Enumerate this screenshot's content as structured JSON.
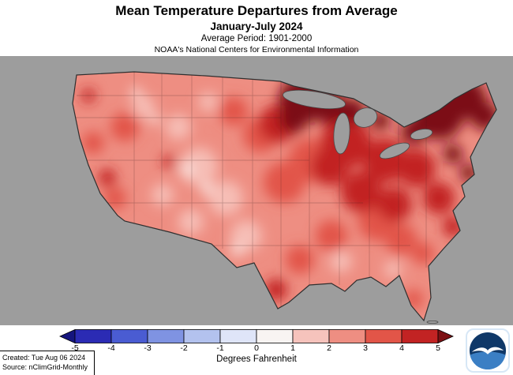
{
  "header": {
    "title": "Mean Temperature Departures from Average",
    "subtitle": "January-July 2024",
    "average_period": "Average Period: 1901-2000",
    "organization": "NOAA's National Centers for Environmental Information"
  },
  "map": {
    "description": "Contiguous United States shaded by mean temperature departure; darkest shading over the Upper Midwest, Great Lakes and Northeast"
  },
  "palette": {
    "mapBg": "#9d9d9d",
    "c01": "#faeae6",
    "c12": "#f6beb6",
    "c23": "#ee8e82",
    "c34": "#e25548",
    "c45": "#c22323",
    "c5p": "#7c1013",
    "outline": "#2f2f2f"
  },
  "colorbar": {
    "tick_labels": [
      "-5",
      "-4",
      "-3",
      "-2",
      "-1",
      "0",
      "1",
      "2",
      "3",
      "4",
      "5"
    ],
    "segment_colors": [
      "#2b2bb4",
      "#4a5cd2",
      "#7f93e2",
      "#b3c2ee",
      "#dfe5f8",
      "#f8f4f2",
      "#f6c3bc",
      "#ee8e82",
      "#e25548",
      "#c22323"
    ],
    "left_tip_color": "#15157e",
    "right_tip_color": "#7c1013",
    "units_label": "Degrees Fahrenheit"
  },
  "footer": {
    "created": "Created: Tue Aug 06 2024",
    "source": "Source: nClimGrid-Monthly"
  },
  "logo": {
    "alt": "NOAA",
    "sky_color": "#0f3868",
    "sea_color": "#3b7fc4",
    "bird_color": "#ffffff"
  }
}
